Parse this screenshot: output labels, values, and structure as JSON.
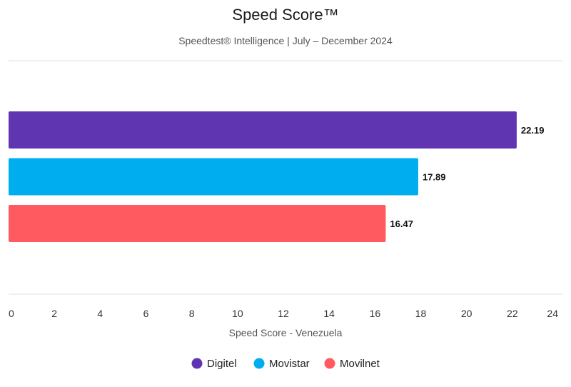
{
  "chart_data": {
    "type": "bar",
    "orientation": "horizontal",
    "title": "Speed Score™",
    "subtitle": "Speedtest® Intelligence | July – December 2024",
    "xlabel": "Speed Score - Venezuela",
    "xlim": [
      0,
      24
    ],
    "xticks": [
      0,
      2,
      4,
      6,
      8,
      10,
      12,
      14,
      16,
      18,
      20,
      22,
      24
    ],
    "categories": [
      "Digitel",
      "Movistar",
      "Movilnet"
    ],
    "values": [
      22.19,
      17.89,
      16.47
    ],
    "value_labels": [
      "22.19",
      "17.89",
      "16.47"
    ],
    "colors": [
      "#6035b2",
      "#00aef0",
      "#ff5a60"
    ],
    "grid": false,
    "legend": {
      "position": "bottom",
      "entries": [
        "Digitel",
        "Movistar",
        "Movilnet"
      ]
    }
  }
}
